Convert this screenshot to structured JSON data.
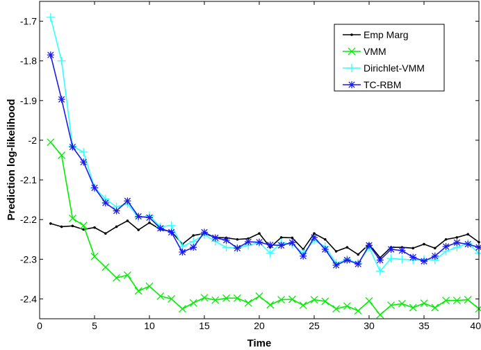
{
  "chart_data": {
    "type": "line",
    "xlabel": "Time",
    "ylabel": "Prediction log-likelihood",
    "xlim": [
      0,
      40
    ],
    "ylim": [
      -2.45,
      -1.65
    ],
    "xticks": [
      0,
      5,
      10,
      15,
      20,
      25,
      30,
      35,
      40
    ],
    "yticks": [
      -1.7,
      -1.8,
      -1.9,
      -2,
      -2.1,
      -2.2,
      -2.3,
      -2.4
    ],
    "grid": false,
    "legend_position": "top-right",
    "x": [
      1,
      2,
      3,
      4,
      5,
      6,
      7,
      8,
      9,
      10,
      11,
      12,
      13,
      14,
      15,
      16,
      17,
      18,
      19,
      20,
      21,
      22,
      23,
      24,
      25,
      26,
      27,
      28,
      29,
      30,
      31,
      32,
      33,
      34,
      35,
      36,
      37,
      38,
      39,
      40
    ],
    "series": [
      {
        "name": "Emp Marg",
        "color": "#000000",
        "marker": "dot",
        "values": [
          -2.21,
          -2.218,
          -2.216,
          -2.225,
          -2.22,
          -2.235,
          -2.218,
          -2.203,
          -2.226,
          -2.208,
          -2.225,
          -2.23,
          -2.262,
          -2.24,
          -2.235,
          -2.245,
          -2.246,
          -2.25,
          -2.248,
          -2.235,
          -2.27,
          -2.245,
          -2.246,
          -2.275,
          -2.235,
          -2.25,
          -2.28,
          -2.27,
          -2.288,
          -2.262,
          -2.296,
          -2.27,
          -2.27,
          -2.272,
          -2.262,
          -2.272,
          -2.25,
          -2.245,
          -2.237,
          -2.257
        ]
      },
      {
        "name": "VMM",
        "color": "#00ee00",
        "marker": "x",
        "values": [
          -2.005,
          -2.038,
          -2.197,
          -2.215,
          -2.293,
          -2.32,
          -2.347,
          -2.34,
          -2.38,
          -2.368,
          -2.393,
          -2.4,
          -2.425,
          -2.41,
          -2.397,
          -2.403,
          -2.398,
          -2.398,
          -2.41,
          -2.393,
          -2.415,
          -2.402,
          -2.401,
          -2.416,
          -2.402,
          -2.406,
          -2.425,
          -2.418,
          -2.43,
          -2.405,
          -2.44,
          -2.416,
          -2.412,
          -2.422,
          -2.411,
          -2.422,
          -2.404,
          -2.404,
          -2.402,
          -2.425
        ]
      },
      {
        "name": "Dirichlet-VMM",
        "color": "#33ffff",
        "marker": "plus",
        "values": [
          -1.69,
          -1.8,
          -2.015,
          -2.03,
          -2.12,
          -2.148,
          -2.168,
          -2.16,
          -2.195,
          -2.19,
          -2.218,
          -2.215,
          -2.268,
          -2.255,
          -2.238,
          -2.255,
          -2.27,
          -2.272,
          -2.265,
          -2.258,
          -2.285,
          -2.258,
          -2.262,
          -2.285,
          -2.252,
          -2.268,
          -2.31,
          -2.3,
          -2.31,
          -2.27,
          -2.33,
          -2.298,
          -2.3,
          -2.302,
          -2.3,
          -2.302,
          -2.28,
          -2.27,
          -2.26,
          -2.285
        ]
      },
      {
        "name": "TC-RBM",
        "color": "#1a1aee",
        "marker": "star",
        "values": [
          -1.785,
          -1.897,
          -2.017,
          -2.055,
          -2.12,
          -2.158,
          -2.178,
          -2.153,
          -2.192,
          -2.195,
          -2.222,
          -2.232,
          -2.282,
          -2.27,
          -2.232,
          -2.246,
          -2.252,
          -2.272,
          -2.256,
          -2.257,
          -2.264,
          -2.265,
          -2.258,
          -2.292,
          -2.245,
          -2.275,
          -2.315,
          -2.302,
          -2.312,
          -2.265,
          -2.302,
          -2.275,
          -2.278,
          -2.295,
          -2.305,
          -2.292,
          -2.268,
          -2.258,
          -2.262,
          -2.27
        ]
      }
    ]
  }
}
